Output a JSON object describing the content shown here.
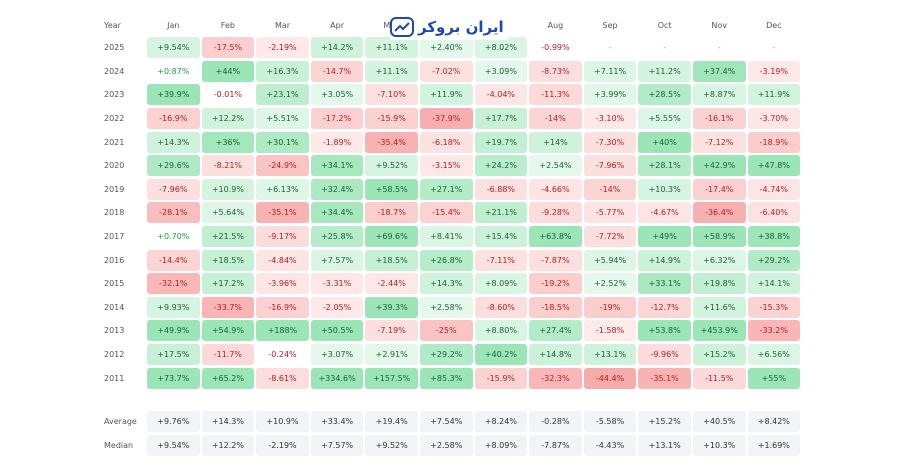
{
  "brand": {
    "name": "ایران بروکر"
  },
  "chart_data": {
    "type": "heatmap",
    "title": "",
    "corner_label": "Year",
    "columns": [
      "Jan",
      "Feb",
      "Mar",
      "Apr",
      "May",
      "Jun",
      "Jul",
      "Aug",
      "Sep",
      "Oct",
      "Nov",
      "Dec"
    ],
    "rows": [
      {
        "year": "2025",
        "values": [
          "+9.54%",
          "-17.5%",
          "-2.19%",
          "+14.2%",
          "+11.1%",
          "+2.40%",
          "+8.02%",
          "-0.99%",
          "-",
          "-",
          "-",
          "-"
        ]
      },
      {
        "year": "2024",
        "values": [
          "+0.87%",
          "+44%",
          "+16.3%",
          "-14.7%",
          "+11.1%",
          "-7.02%",
          "+3.09%",
          "-8.73%",
          "+7.11%",
          "+11.2%",
          "+37.4%",
          "-3.19%"
        ]
      },
      {
        "year": "2023",
        "values": [
          "+39.9%",
          "-0.01%",
          "+23.1%",
          "+3.05%",
          "-7.10%",
          "+11.9%",
          "-4.04%",
          "-11.3%",
          "+3.99%",
          "+28.5%",
          "+8.87%",
          "+11.9%"
        ]
      },
      {
        "year": "2022",
        "values": [
          "-16.9%",
          "+12.2%",
          "+5.51%",
          "-17.2%",
          "-15.9%",
          "-37.9%",
          "+17.7%",
          "-14%",
          "-3.10%",
          "+5.55%",
          "-16.1%",
          "-3.70%"
        ]
      },
      {
        "year": "2021",
        "values": [
          "+14.3%",
          "+36%",
          "+30.1%",
          "-1.89%",
          "-35.4%",
          "-6.18%",
          "+19.7%",
          "+14%",
          "-7.30%",
          "+40%",
          "-7.12%",
          "-18.9%"
        ]
      },
      {
        "year": "2020",
        "values": [
          "+29.6%",
          "-8.21%",
          "-24.9%",
          "+34.1%",
          "+9.52%",
          "-3.15%",
          "+24.2%",
          "+2.54%",
          "-7.96%",
          "+28.1%",
          "+42.9%",
          "+47.8%"
        ]
      },
      {
        "year": "2019",
        "values": [
          "-7.96%",
          "+10.9%",
          "+6.13%",
          "+32.4%",
          "+58.5%",
          "+27.1%",
          "-6.88%",
          "-4.66%",
          "-14%",
          "+10.3%",
          "-17.4%",
          "-4.74%"
        ]
      },
      {
        "year": "2018",
        "values": [
          "-28.1%",
          "+5.64%",
          "-35.1%",
          "+34.4%",
          "-18.7%",
          "-15.4%",
          "+21.1%",
          "-9.28%",
          "-5.77%",
          "-4.67%",
          "-36.4%",
          "-6.40%"
        ]
      },
      {
        "year": "2017",
        "values": [
          "+0.70%",
          "+21.5%",
          "-9.17%",
          "+25.8%",
          "+69.6%",
          "+8.41%",
          "+15.4%",
          "+63.8%",
          "-7.72%",
          "+49%",
          "+58.9%",
          "+38.8%"
        ]
      },
      {
        "year": "2016",
        "values": [
          "-14.4%",
          "+18.5%",
          "-4.84%",
          "+7.57%",
          "+18.5%",
          "+26.8%",
          "-7.11%",
          "-7.87%",
          "+5.94%",
          "+14.9%",
          "+6.32%",
          "+29.2%"
        ]
      },
      {
        "year": "2015",
        "values": [
          "-32.1%",
          "+17.2%",
          "-3.96%",
          "-3.31%",
          "-2.44%",
          "+14.3%",
          "+8.09%",
          "-19.2%",
          "+2.52%",
          "+33.1%",
          "+19.8%",
          "+14.1%"
        ]
      },
      {
        "year": "2014",
        "values": [
          "+9.93%",
          "-33.7%",
          "-16.9%",
          "-2.05%",
          "+39.3%",
          "+2.58%",
          "-8.60%",
          "-18.5%",
          "-19%",
          "-12.7%",
          "+11.6%",
          "-15.3%"
        ]
      },
      {
        "year": "2013",
        "values": [
          "+49.9%",
          "+54.9%",
          "+188%",
          "+50.5%",
          "-7.19%",
          "-25%",
          "+8.80%",
          "+27.4%",
          "-1.58%",
          "+53.8%",
          "+453.9%",
          "-33.2%"
        ]
      },
      {
        "year": "2012",
        "values": [
          "+17.5%",
          "-11.7%",
          "-0.24%",
          "+3.07%",
          "+2.91%",
          "+29.2%",
          "+40.2%",
          "+14.8%",
          "+13.1%",
          "-9.96%",
          "+15.2%",
          "+6.56%"
        ]
      },
      {
        "year": "2011",
        "values": [
          "+73.7%",
          "+65.2%",
          "-8.61%",
          "+334.6%",
          "+157.5%",
          "+85.3%",
          "-15.9%",
          "-32.3%",
          "-44.4%",
          "-35.1%",
          "-11.5%",
          "+55%"
        ]
      }
    ],
    "summary": [
      {
        "label": "Average",
        "values": [
          "+9.76%",
          "+14.3%",
          "+10.9%",
          "+33.4%",
          "+19.4%",
          "+7.54%",
          "+8.24%",
          "-0.28%",
          "-5.58%",
          "+15.2%",
          "+40.5%",
          "+8.42%"
        ]
      },
      {
        "label": "Median",
        "values": [
          "+9.54%",
          "+12.2%",
          "-2.19%",
          "+7.57%",
          "+9.52%",
          "+2.58%",
          "+8.09%",
          "-7.87%",
          "-4.43%",
          "+13.1%",
          "+10.3%",
          "+1.69%"
        ]
      }
    ],
    "colors": {
      "positive": "#16a34a",
      "negative": "#dc2626"
    }
  }
}
